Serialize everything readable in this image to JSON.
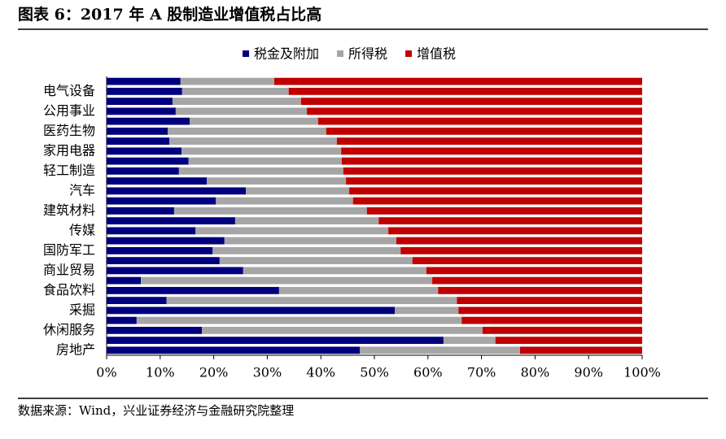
{
  "chart_data": {
    "type": "stacked_barh",
    "title": "图表 6：2017 年 A 股制造业增值税占比高",
    "source": "数据来源：Wind，兴业证券经济与金融研究院整理",
    "categories": [
      null,
      "电气设备",
      null,
      "公用事业",
      null,
      "医药生物",
      null,
      "家用电器",
      null,
      "轻工制造",
      null,
      "汽车",
      null,
      "建筑材料",
      null,
      "传媒",
      null,
      "国防军工",
      null,
      "商业贸易",
      null,
      "食品饮料",
      null,
      "采掘",
      null,
      "休闲服务",
      null,
      "房地产"
    ],
    "series": [
      {
        "name": "税金及附加",
        "color": "#00007f",
        "values": [
          13.8,
          14.1,
          12.3,
          12.9,
          15.5,
          11.4,
          11.7,
          14.0,
          15.3,
          13.5,
          18.7,
          26.0,
          20.4,
          12.6,
          24.0,
          16.6,
          22.0,
          19.8,
          21.1,
          25.5,
          6.4,
          32.2,
          11.2,
          53.8,
          5.6,
          17.8,
          62.9,
          47.3
        ]
      },
      {
        "name": "所得税",
        "color": "#a6a6a6",
        "values": [
          17.5,
          19.9,
          24.0,
          24.5,
          24.0,
          29.6,
          31.3,
          29.8,
          28.6,
          30.7,
          26.0,
          19.3,
          25.6,
          36.0,
          26.8,
          36.0,
          32.1,
          35.1,
          36.0,
          34.2,
          54.4,
          29.7,
          54.2,
          11.9,
          60.7,
          52.4,
          9.7,
          29.9
        ]
      },
      {
        "name": "增值税",
        "color": "#c00000",
        "values": [
          68.7,
          66.0,
          63.7,
          62.6,
          60.5,
          59.0,
          57.0,
          56.2,
          56.1,
          55.8,
          55.3,
          54.7,
          54.0,
          51.4,
          49.2,
          47.4,
          45.9,
          45.1,
          42.9,
          40.3,
          39.2,
          38.1,
          34.6,
          34.3,
          33.7,
          29.8,
          27.4,
          22.8
        ]
      }
    ],
    "xlim": [
      0,
      100
    ],
    "xticks": [
      {
        "value": 0,
        "label": "0%"
      },
      {
        "value": 10,
        "label": "10%"
      },
      {
        "value": 20,
        "label": "20%"
      },
      {
        "value": 30,
        "label": "30%"
      },
      {
        "value": 40,
        "label": "40%"
      },
      {
        "value": 50,
        "label": "50%"
      },
      {
        "value": 60,
        "label": "60%"
      },
      {
        "value": 70,
        "label": "70%"
      },
      {
        "value": 80,
        "label": "80%"
      },
      {
        "value": 90,
        "label": "90%"
      },
      {
        "value": 100,
        "label": "100%"
      }
    ],
    "legend": "top"
  }
}
